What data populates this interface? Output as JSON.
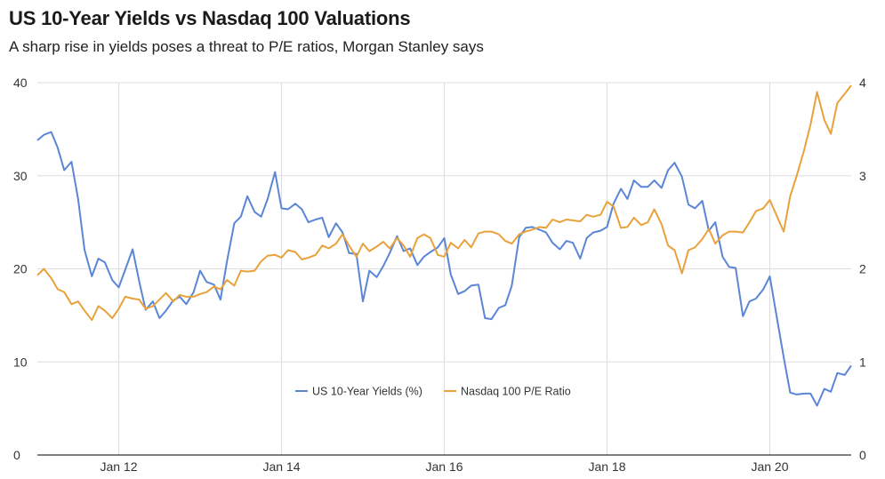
{
  "title": "US 10-Year Yields vs Nasdaq 100 Valuations",
  "subtitle": "A sharp rise in yields poses a threat to P/E ratios, Morgan Stanley says",
  "colors": {
    "yields": "#5b86d6",
    "pe": "#e9a23b",
    "grid": "#dddddd"
  },
  "chart_data": {
    "type": "line",
    "title": "US 10-Year Yields vs Nasdaq 100 Valuations",
    "subtitle": "A sharp rise in yields poses a threat to P/E ratios, Morgan Stanley says",
    "x_ticks": [
      "Jan 12",
      "Jan 14",
      "Jan 16",
      "Jan 18",
      "Jan 20"
    ],
    "x_tick_values": [
      2012.0,
      2014.0,
      2016.0,
      2018.0,
      2020.0
    ],
    "xlim": [
      2011.0,
      2021.0
    ],
    "y_left": {
      "ylim": [
        0,
        40
      ],
      "ticks": [
        "0",
        "10",
        "20",
        "30",
        "40"
      ]
    },
    "y_right": {
      "ylim": [
        0,
        4
      ],
      "ticks": [
        "0",
        "1",
        "2",
        "3",
        "4"
      ]
    },
    "grid": true,
    "legend_position": "bottom-center",
    "series": [
      {
        "name": "US 10-Year Yields (%)",
        "axis": "left",
        "x": [
          2011.0,
          2011.08,
          2011.17,
          2011.25,
          2011.33,
          2011.42,
          2011.5,
          2011.58,
          2011.67,
          2011.75,
          2011.83,
          2011.92,
          2012.0,
          2012.08,
          2012.17,
          2012.25,
          2012.33,
          2012.42,
          2012.5,
          2012.58,
          2012.67,
          2012.75,
          2012.83,
          2012.92,
          2013.0,
          2013.08,
          2013.17,
          2013.25,
          2013.33,
          2013.42,
          2013.5,
          2013.58,
          2013.67,
          2013.75,
          2013.83,
          2013.92,
          2014.0,
          2014.08,
          2014.17,
          2014.25,
          2014.33,
          2014.42,
          2014.5,
          2014.58,
          2014.67,
          2014.75,
          2014.83,
          2014.92,
          2015.0,
          2015.08,
          2015.17,
          2015.25,
          2015.33,
          2015.42,
          2015.5,
          2015.58,
          2015.67,
          2015.75,
          2015.83,
          2015.92,
          2016.0,
          2016.08,
          2016.17,
          2016.25,
          2016.33,
          2016.42,
          2016.5,
          2016.58,
          2016.67,
          2016.75,
          2016.83,
          2016.92,
          2017.0,
          2017.08,
          2017.17,
          2017.25,
          2017.33,
          2017.42,
          2017.5,
          2017.58,
          2017.67,
          2017.75,
          2017.83,
          2017.92,
          2018.0,
          2018.08,
          2018.17,
          2018.25,
          2018.33,
          2018.42,
          2018.5,
          2018.58,
          2018.67,
          2018.75,
          2018.83,
          2018.92,
          2019.0,
          2019.08,
          2019.17,
          2019.25,
          2019.33,
          2019.42,
          2019.5,
          2019.58,
          2019.67,
          2019.75,
          2019.83,
          2019.92,
          2020.0,
          2020.08,
          2020.17,
          2020.25,
          2020.33,
          2020.42,
          2020.5,
          2020.58,
          2020.67,
          2020.75,
          2020.83,
          2020.92,
          2021.0
        ],
        "values": [
          33.8,
          34.4,
          34.7,
          33.0,
          30.6,
          31.5,
          27.5,
          22.0,
          19.2,
          21.1,
          20.7,
          18.8,
          18.0,
          19.9,
          22.1,
          18.7,
          15.6,
          16.5,
          14.7,
          15.5,
          16.6,
          17.0,
          16.2,
          17.5,
          19.8,
          18.6,
          18.3,
          16.7,
          20.8,
          24.9,
          25.6,
          27.8,
          26.1,
          25.6,
          27.5,
          30.4,
          26.5,
          26.4,
          27.0,
          26.4,
          25.0,
          25.3,
          25.5,
          23.4,
          24.9,
          23.9,
          21.7,
          21.6,
          16.5,
          19.8,
          19.1,
          20.3,
          21.7,
          23.5,
          21.9,
          22.2,
          20.4,
          21.3,
          21.8,
          22.3,
          23.3,
          19.4,
          17.3,
          17.6,
          18.2,
          18.3,
          14.7,
          14.6,
          15.8,
          16.1,
          18.2,
          23.4,
          24.4,
          24.5,
          24.2,
          23.9,
          22.8,
          22.1,
          23.0,
          22.8,
          21.1,
          23.3,
          23.9,
          24.1,
          24.5,
          27.0,
          28.6,
          27.5,
          29.5,
          28.8,
          28.8,
          29.5,
          28.7,
          30.6,
          31.4,
          29.9,
          26.9,
          26.5,
          27.3,
          24.1,
          25.0,
          21.3,
          20.2,
          20.1,
          14.9,
          16.5,
          16.8,
          17.8,
          19.2,
          15.1,
          10.5,
          6.7,
          6.5,
          6.6,
          6.6,
          5.3,
          7.1,
          6.8,
          8.8,
          8.6,
          9.6
        ]
      },
      {
        "name": "Nasdaq 100 P/E Ratio",
        "axis": "right",
        "x": [
          2011.0,
          2011.08,
          2011.17,
          2011.25,
          2011.33,
          2011.42,
          2011.5,
          2011.58,
          2011.67,
          2011.75,
          2011.83,
          2011.92,
          2012.0,
          2012.08,
          2012.17,
          2012.25,
          2012.33,
          2012.42,
          2012.5,
          2012.58,
          2012.67,
          2012.75,
          2012.83,
          2012.92,
          2013.0,
          2013.08,
          2013.17,
          2013.25,
          2013.33,
          2013.42,
          2013.5,
          2013.58,
          2013.67,
          2013.75,
          2013.83,
          2013.92,
          2014.0,
          2014.08,
          2014.17,
          2014.25,
          2014.33,
          2014.42,
          2014.5,
          2014.58,
          2014.67,
          2014.75,
          2014.83,
          2014.92,
          2015.0,
          2015.08,
          2015.17,
          2015.25,
          2015.33,
          2015.42,
          2015.5,
          2015.58,
          2015.67,
          2015.75,
          2015.83,
          2015.92,
          2016.0,
          2016.08,
          2016.17,
          2016.25,
          2016.33,
          2016.42,
          2016.5,
          2016.58,
          2016.67,
          2016.75,
          2016.83,
          2016.92,
          2017.0,
          2017.08,
          2017.17,
          2017.25,
          2017.33,
          2017.42,
          2017.5,
          2017.58,
          2017.67,
          2017.75,
          2017.83,
          2017.92,
          2018.0,
          2018.08,
          2018.17,
          2018.25,
          2018.33,
          2018.42,
          2018.5,
          2018.58,
          2018.67,
          2018.75,
          2018.83,
          2018.92,
          2019.0,
          2019.08,
          2019.17,
          2019.25,
          2019.33,
          2019.42,
          2019.5,
          2019.58,
          2019.67,
          2019.75,
          2019.83,
          2019.92,
          2020.0,
          2020.08,
          2020.17,
          2020.25,
          2020.33,
          2020.42,
          2020.5,
          2020.58,
          2020.67,
          2020.75,
          2020.83,
          2020.92,
          2021.0
        ],
        "values": [
          1.93,
          2.0,
          1.9,
          1.78,
          1.75,
          1.62,
          1.65,
          1.55,
          1.45,
          1.6,
          1.55,
          1.47,
          1.57,
          1.7,
          1.68,
          1.67,
          1.57,
          1.6,
          1.67,
          1.74,
          1.65,
          1.72,
          1.7,
          1.7,
          1.73,
          1.75,
          1.81,
          1.78,
          1.88,
          1.82,
          1.98,
          1.97,
          1.98,
          2.08,
          2.14,
          2.15,
          2.12,
          2.2,
          2.18,
          2.1,
          2.12,
          2.15,
          2.25,
          2.22,
          2.27,
          2.37,
          2.25,
          2.13,
          2.27,
          2.19,
          2.24,
          2.29,
          2.22,
          2.33,
          2.25,
          2.13,
          2.33,
          2.37,
          2.33,
          2.15,
          2.13,
          2.28,
          2.22,
          2.31,
          2.23,
          2.38,
          2.4,
          2.4,
          2.37,
          2.3,
          2.27,
          2.37,
          2.4,
          2.42,
          2.45,
          2.44,
          2.53,
          2.5,
          2.53,
          2.52,
          2.51,
          2.58,
          2.56,
          2.58,
          2.72,
          2.67,
          2.44,
          2.45,
          2.55,
          2.47,
          2.5,
          2.64,
          2.48,
          2.25,
          2.2,
          1.95,
          2.2,
          2.23,
          2.32,
          2.43,
          2.27,
          2.36,
          2.4,
          2.4,
          2.39,
          2.5,
          2.62,
          2.65,
          2.74,
          2.58,
          2.4,
          2.78,
          3.0,
          3.27,
          3.55,
          3.9,
          3.6,
          3.45,
          3.78,
          3.88,
          3.97
        ]
      }
    ]
  }
}
